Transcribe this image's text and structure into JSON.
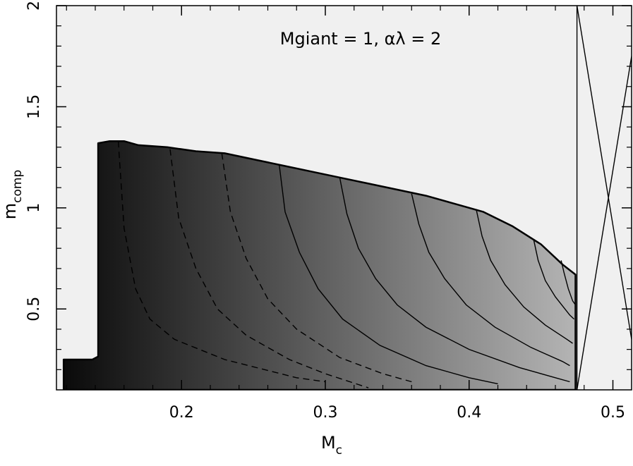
{
  "chart_data": {
    "type": "heatmap",
    "title": "",
    "annotation": "Mgiant = 1, αλ = 2",
    "xlabel": "M",
    "xlabel_subscript": "c",
    "ylabel": "m",
    "ylabel_subscript": "comp",
    "xlim": [
      0.113,
      0.513
    ],
    "ylim": [
      0.1,
      2.0
    ],
    "x_ticks": [
      {
        "value": 0.2,
        "label": "0.2"
      },
      {
        "value": 0.3,
        "label": "0.3"
      },
      {
        "value": 0.4,
        "label": "0.4"
      },
      {
        "value": 0.5,
        "label": "0.5"
      }
    ],
    "y_ticks": [
      {
        "value": 0.5,
        "label": "0.5"
      },
      {
        "value": 1.0,
        "label": "1"
      },
      {
        "value": 1.5,
        "label": "1.5"
      },
      {
        "value": 2.0,
        "label": "2"
      }
    ],
    "grid": false,
    "colors": {
      "background_region": "#f0f0f0",
      "shade_dark": "#0a0a0a",
      "shade_light": "#b4b4b4",
      "contour_line": "#000000"
    },
    "allowed_region_boundary": [
      [
        0.118,
        0.25
      ],
      [
        0.138,
        0.25
      ],
      [
        0.142,
        0.265
      ],
      [
        0.142,
        1.32
      ],
      [
        0.15,
        1.33
      ],
      [
        0.16,
        1.33
      ],
      [
        0.17,
        1.31
      ],
      [
        0.19,
        1.3
      ],
      [
        0.21,
        1.28
      ],
      [
        0.23,
        1.27
      ],
      [
        0.25,
        1.24
      ],
      [
        0.27,
        1.21
      ],
      [
        0.29,
        1.18
      ],
      [
        0.31,
        1.15
      ],
      [
        0.33,
        1.12
      ],
      [
        0.35,
        1.09
      ],
      [
        0.37,
        1.06
      ],
      [
        0.39,
        1.02
      ],
      [
        0.41,
        0.98
      ],
      [
        0.43,
        0.91
      ],
      [
        0.45,
        0.82
      ],
      [
        0.465,
        0.72
      ],
      [
        0.474,
        0.67
      ],
      [
        0.474,
        0.1
      ]
    ],
    "contours": [
      {
        "style": "dashed",
        "points": [
          [
            0.156,
            1.33
          ],
          [
            0.16,
            0.9
          ],
          [
            0.168,
            0.6
          ],
          [
            0.178,
            0.45
          ],
          [
            0.195,
            0.35
          ],
          [
            0.23,
            0.25
          ],
          [
            0.28,
            0.16
          ],
          [
            0.3,
            0.14
          ]
        ]
      },
      {
        "style": "dashed",
        "points": [
          [
            0.192,
            1.29
          ],
          [
            0.198,
            0.95
          ],
          [
            0.21,
            0.7
          ],
          [
            0.225,
            0.5
          ],
          [
            0.245,
            0.37
          ],
          [
            0.275,
            0.25
          ],
          [
            0.3,
            0.18
          ],
          [
            0.33,
            0.11
          ]
        ]
      },
      {
        "style": "dashed",
        "points": [
          [
            0.228,
            1.27
          ],
          [
            0.234,
            0.98
          ],
          [
            0.245,
            0.75
          ],
          [
            0.26,
            0.55
          ],
          [
            0.28,
            0.4
          ],
          [
            0.31,
            0.26
          ],
          [
            0.34,
            0.18
          ],
          [
            0.36,
            0.14
          ]
        ]
      },
      {
        "style": "solid",
        "points": [
          [
            0.268,
            1.21
          ],
          [
            0.272,
            0.98
          ],
          [
            0.282,
            0.78
          ],
          [
            0.295,
            0.6
          ],
          [
            0.312,
            0.45
          ],
          [
            0.338,
            0.32
          ],
          [
            0.37,
            0.22
          ],
          [
            0.4,
            0.16
          ],
          [
            0.42,
            0.13
          ]
        ]
      },
      {
        "style": "solid",
        "points": [
          [
            0.31,
            1.15
          ],
          [
            0.315,
            0.97
          ],
          [
            0.323,
            0.8
          ],
          [
            0.335,
            0.65
          ],
          [
            0.35,
            0.52
          ],
          [
            0.37,
            0.41
          ],
          [
            0.4,
            0.3
          ],
          [
            0.435,
            0.21
          ],
          [
            0.46,
            0.16
          ],
          [
            0.47,
            0.14
          ]
        ]
      },
      {
        "style": "solid",
        "points": [
          [
            0.36,
            1.07
          ],
          [
            0.365,
            0.92
          ],
          [
            0.372,
            0.78
          ],
          [
            0.383,
            0.65
          ],
          [
            0.398,
            0.52
          ],
          [
            0.418,
            0.41
          ],
          [
            0.443,
            0.31
          ],
          [
            0.465,
            0.24
          ],
          [
            0.47,
            0.22
          ]
        ]
      },
      {
        "style": "solid",
        "points": [
          [
            0.405,
            0.99
          ],
          [
            0.409,
            0.86
          ],
          [
            0.415,
            0.74
          ],
          [
            0.425,
            0.62
          ],
          [
            0.438,
            0.51
          ],
          [
            0.453,
            0.42
          ],
          [
            0.468,
            0.35
          ],
          [
            0.472,
            0.33
          ]
        ]
      },
      {
        "style": "solid",
        "points": [
          [
            0.445,
            0.84
          ],
          [
            0.448,
            0.74
          ],
          [
            0.453,
            0.64
          ],
          [
            0.46,
            0.56
          ],
          [
            0.47,
            0.47
          ],
          [
            0.473,
            0.45
          ]
        ]
      },
      {
        "style": "solid",
        "points": [
          [
            0.464,
            0.74
          ],
          [
            0.466,
            0.68
          ],
          [
            0.469,
            0.6
          ],
          [
            0.472,
            0.54
          ],
          [
            0.474,
            0.52
          ]
        ]
      }
    ],
    "boundary_lines": [
      {
        "style": "solid",
        "points": [
          [
            0.475,
            0.1
          ],
          [
            0.475,
            2.0
          ]
        ]
      },
      {
        "style": "solid",
        "points": [
          [
            0.475,
            2.0
          ],
          [
            0.513,
            0.35
          ]
        ]
      },
      {
        "style": "solid",
        "points": [
          [
            0.475,
            0.1
          ],
          [
            0.513,
            1.75
          ]
        ]
      }
    ]
  }
}
